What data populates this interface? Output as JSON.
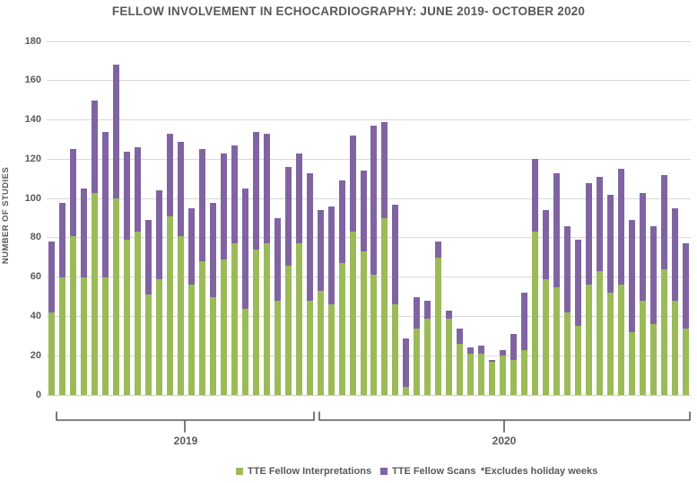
{
  "title": "FELLOW INVOLVEMENT IN ECHOCARDIOGRAPHY: JUNE 2019- OCTOBER 2020",
  "y_axis": {
    "label": "NUMBER OF STUDIES",
    "ticks": [
      0,
      20,
      40,
      60,
      80,
      100,
      120,
      140,
      160,
      180
    ]
  },
  "x_axis": {
    "group_labels": [
      "2019",
      "2020"
    ]
  },
  "legend": {
    "items": [
      {
        "label": "TTE Fellow Interpretations",
        "color": "#9bbb59"
      },
      {
        "label": "TTE Fellow Scans",
        "color": "#8064a2"
      }
    ],
    "note": "*Excludes holiday weeks"
  },
  "colors": {
    "interpretations_green": "#9bbb59",
    "scans_purple": "#8064a2",
    "gridline_gray": "#d9d9d9",
    "text_gray": "#595959"
  },
  "chart_data": {
    "type": "bar",
    "stacked": true,
    "title": "FELLOW INVOLVEMENT IN ECHOCARDIOGRAPHY: JUNE 2019- OCTOBER 2020",
    "xlabel": "",
    "ylabel": "NUMBER OF STUDIES",
    "ylim": [
      0,
      180
    ],
    "grid": true,
    "legend_position": "bottom",
    "x_groups": [
      {
        "label": "2019",
        "bar_span": [
          1,
          25
        ]
      },
      {
        "label": "2020",
        "bar_span": [
          26,
          60
        ]
      }
    ],
    "series": [
      {
        "name": "TTE Fellow Interpretations",
        "color": "#9bbb59",
        "values": [
          42,
          60,
          81,
          60,
          103,
          60,
          100,
          79,
          83,
          51,
          59,
          91,
          81,
          56,
          68,
          50,
          69,
          77,
          44,
          74,
          77,
          48,
          66,
          77,
          48,
          53,
          46,
          67,
          83,
          73,
          61,
          90,
          46,
          4,
          34,
          39,
          70,
          39,
          26,
          21,
          21,
          17,
          20,
          18,
          23,
          83,
          59,
          55,
          42,
          35,
          56,
          63,
          52,
          56,
          32,
          48,
          36,
          64,
          48,
          34
        ]
      },
      {
        "name": "TTE Fellow Scans",
        "color": "#8064a2",
        "values": [
          36,
          38,
          44,
          45,
          47,
          74,
          68,
          45,
          43,
          38,
          45,
          42,
          48,
          39,
          57,
          48,
          54,
          50,
          61,
          60,
          56,
          42,
          50,
          46,
          65,
          41,
          50,
          42,
          49,
          41,
          76,
          49,
          51,
          25,
          16,
          9,
          8,
          4,
          8,
          3,
          4,
          1,
          3,
          13,
          29,
          37,
          35,
          58,
          44,
          44,
          52,
          48,
          50,
          59,
          57,
          55,
          50,
          48,
          47,
          43
        ]
      }
    ],
    "stack_totals": [
      78,
      98,
      125,
      105,
      150,
      134,
      168,
      124,
      126,
      89,
      104,
      133,
      129,
      95,
      125,
      98,
      123,
      127,
      105,
      134,
      133,
      90,
      116,
      123,
      113,
      94,
      96,
      109,
      132,
      114,
      137,
      139,
      97,
      29,
      50,
      48,
      78,
      43,
      34,
      24,
      25,
      18,
      23,
      31,
      52,
      120,
      94,
      113,
      86,
      79,
      108,
      111,
      102,
      115,
      89,
      103,
      86,
      112,
      95,
      77
    ]
  }
}
